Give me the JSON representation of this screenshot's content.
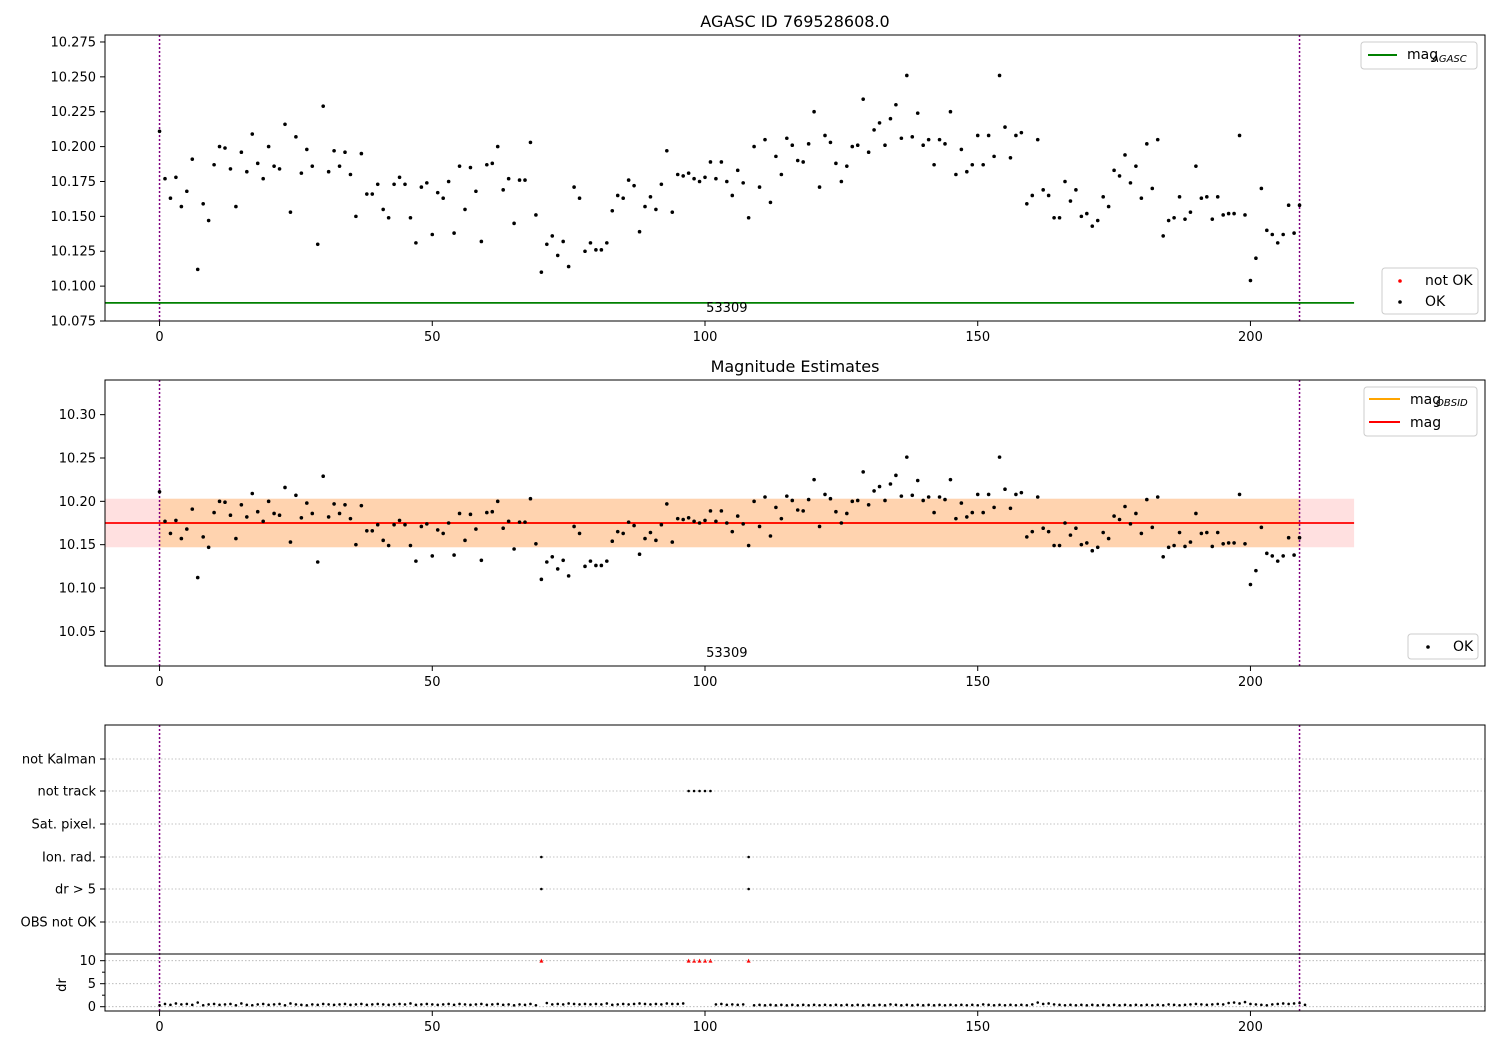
{
  "chart_data": [
    {
      "type": "scatter",
      "title": "AGASC ID 769528608.0",
      "xlim": [
        -10,
        243
      ],
      "ylim": [
        10.075,
        10.28
      ],
      "xticks": [
        0,
        50,
        100,
        150,
        200
      ],
      "yticks": [
        10.075,
        10.1,
        10.125,
        10.15,
        10.175,
        10.2,
        10.225,
        10.25,
        10.275
      ],
      "ytick_labels": [
        "10.075",
        "10.100",
        "10.125",
        "10.150",
        "10.175",
        "10.200",
        "10.225",
        "10.250",
        "10.275"
      ],
      "obsid_label": "53309",
      "obsid_label_x": 104,
      "obs_boundaries": [
        0,
        209
      ],
      "mag_agasc": 10.088,
      "mag_agasc_xrange": [
        -10,
        219
      ],
      "legend_top": {
        "placement": "top-right",
        "entries": [
          {
            "label": "mag",
            "subscript": "AGASC",
            "color": "#008000",
            "kind": "line"
          }
        ]
      },
      "legend_bottom": {
        "placement": "lower-right",
        "entries": [
          {
            "label": "not OK",
            "color": "#ff0000",
            "kind": "point"
          },
          {
            "label": "OK",
            "color": "#000000",
            "kind": "point"
          }
        ]
      },
      "series": [
        {
          "name": "OK",
          "color": "#000000",
          "x": [
            0,
            1,
            2,
            3,
            4,
            5,
            6,
            7,
            8,
            9,
            10,
            11,
            12,
            13,
            14,
            15,
            16,
            17,
            18,
            19,
            20,
            21,
            22,
            23,
            24,
            25,
            26,
            27,
            28,
            29,
            30,
            31,
            32,
            33,
            34,
            35,
            36,
            37,
            38,
            39,
            40,
            41,
            42,
            43,
            44,
            45,
            46,
            47,
            48,
            49,
            50,
            51,
            52,
            53,
            54,
            55,
            56,
            57,
            58,
            59,
            60,
            61,
            62,
            63,
            64,
            65,
            66,
            67,
            68,
            69,
            70,
            71,
            72,
            73,
            74,
            75,
            76,
            77,
            78,
            79,
            80,
            81,
            82,
            83,
            84,
            85,
            86,
            87,
            88,
            89,
            90,
            91,
            92,
            93,
            94,
            95,
            96,
            97,
            98,
            99,
            100,
            101,
            102,
            103,
            104,
            105,
            106,
            107,
            108,
            109,
            110,
            111,
            112,
            113,
            114,
            115,
            116,
            117,
            118,
            119,
            120,
            121,
            122,
            123,
            124,
            125,
            126,
            127,
            128,
            129,
            130,
            131,
            132,
            133,
            134,
            135,
            136,
            137,
            138,
            139,
            140,
            141,
            142,
            143,
            144,
            145,
            146,
            147,
            148,
            149,
            150,
            151,
            152,
            153,
            154,
            155,
            156,
            157,
            158,
            159,
            160,
            161,
            162,
            163,
            164,
            165,
            166,
            167,
            168,
            169,
            170,
            171,
            172,
            173,
            174,
            175,
            176,
            177,
            178,
            179,
            180,
            181,
            182,
            183,
            184,
            185,
            186,
            187,
            188,
            189,
            190,
            191,
            192,
            193,
            194,
            195,
            196,
            197,
            198,
            199,
            200,
            201,
            202,
            203,
            204,
            205,
            206,
            207,
            208,
            209
          ],
          "y": [
            10.211,
            10.177,
            10.163,
            10.178,
            10.157,
            10.168,
            10.191,
            10.112,
            10.159,
            10.147,
            10.187,
            10.2,
            10.199,
            10.184,
            10.157,
            10.196,
            10.182,
            10.209,
            10.188,
            10.177,
            10.2,
            10.186,
            10.184,
            10.216,
            10.153,
            10.207,
            10.181,
            10.198,
            10.186,
            10.13,
            10.229,
            10.182,
            10.197,
            10.186,
            10.196,
            10.18,
            10.15,
            10.195,
            10.166,
            10.166,
            10.173,
            10.155,
            10.149,
            10.173,
            10.178,
            10.173,
            10.149,
            10.131,
            10.171,
            10.174,
            10.137,
            10.167,
            10.163,
            10.175,
            10.138,
            10.186,
            10.155,
            10.185,
            10.168,
            10.132,
            10.187,
            10.188,
            10.2,
            10.169,
            10.177,
            10.145,
            10.176,
            10.176,
            10.203,
            10.151,
            10.11,
            10.13,
            10.136,
            10.122,
            10.132,
            10.114,
            10.171,
            10.163,
            10.125,
            10.131,
            10.126,
            10.126,
            10.131,
            10.154,
            10.165,
            10.163,
            10.176,
            10.172,
            10.139,
            10.157,
            10.164,
            10.155,
            10.173,
            10.197,
            10.153,
            10.18,
            10.179,
            10.181,
            10.177,
            10.175,
            10.178,
            10.189,
            10.177,
            10.189,
            10.175,
            10.165,
            10.183,
            10.174,
            10.149,
            10.2,
            10.171,
            10.205,
            10.16,
            10.193,
            10.18,
            10.206,
            10.201,
            10.19,
            10.189,
            10.202,
            10.225,
            10.171,
            10.208,
            10.203,
            10.188,
            10.175,
            10.186,
            10.2,
            10.201,
            10.234,
            10.196,
            10.212,
            10.217,
            10.201,
            10.22,
            10.23,
            10.206,
            10.251,
            10.207,
            10.224,
            10.201,
            10.205,
            10.187,
            10.205,
            10.202,
            10.225,
            10.18,
            10.198,
            10.182,
            10.187,
            10.208,
            10.187,
            10.208,
            10.193,
            10.251,
            10.214,
            10.192,
            10.208,
            10.21,
            10.159,
            10.165,
            10.205,
            10.169,
            10.165,
            10.149,
            10.149,
            10.175,
            10.161,
            10.169,
            10.15,
            10.152,
            10.143,
            10.147,
            10.164,
            10.157,
            10.183,
            10.179,
            10.194,
            10.174,
            10.186,
            10.163,
            10.202,
            10.17,
            10.205,
            10.136,
            10.147,
            10.149,
            10.164,
            10.148,
            10.153,
            10.186,
            10.163,
            10.164,
            10.148,
            10.164,
            10.151,
            10.152,
            10.152,
            10.208,
            10.151,
            10.104,
            10.12,
            10.17,
            10.14,
            10.137,
            10.131,
            10.137,
            10.158,
            10.138,
            10.158
          ]
        }
      ]
    },
    {
      "type": "scatter",
      "title": "Magnitude Estimates",
      "xlim": [
        -10,
        243
      ],
      "ylim": [
        10.01,
        10.34
      ],
      "xticks": [
        0,
        50,
        100,
        150,
        200
      ],
      "yticks": [
        10.05,
        10.1,
        10.15,
        10.2,
        10.25,
        10.3
      ],
      "ytick_labels": [
        "10.05",
        "10.10",
        "10.15",
        "10.20",
        "10.25",
        "10.30"
      ],
      "obsid_label": "53309",
      "obsid_label_x": 104,
      "obs_boundaries": [
        0,
        209
      ],
      "mag_obsid": {
        "value": 10.175,
        "band": [
          10.147,
          10.203
        ],
        "color": "#ffa500"
      },
      "mag": {
        "value": 10.175,
        "band": [
          10.147,
          10.203
        ],
        "color": "#ff0000"
      },
      "band_xrange": [
        -10,
        219
      ],
      "legend_top": {
        "placement": "top-right",
        "entries": [
          {
            "label": "mag",
            "subscript": "OBSID",
            "color": "#ffa500",
            "kind": "line"
          },
          {
            "label": "mag",
            "subscript": "",
            "color": "#ff0000",
            "kind": "line"
          }
        ]
      },
      "legend_bottom": {
        "placement": "lower-right",
        "entries": [
          {
            "label": "OK",
            "color": "#000000",
            "kind": "point"
          }
        ]
      },
      "series_ref": "same points as chart 1, OK series"
    },
    {
      "type": "scatter",
      "title": "",
      "xlim": [
        -10,
        243
      ],
      "xticks": [
        0,
        50,
        100,
        150,
        200
      ],
      "obs_boundaries": [
        0,
        209
      ],
      "flag_rows": [
        "not Kalman",
        "not track",
        "Sat. pixel.",
        "Ion. rad.",
        "dr > 5",
        "OBS not OK"
      ],
      "flags": {
        "not track": [
          97,
          98,
          99,
          100,
          101
        ],
        "Ion. rad.": [
          70,
          108
        ],
        "dr > 5": [
          70,
          108
        ]
      },
      "dr_ylim": [
        -0.5,
        10.8
      ],
      "dr_yticks": [
        0,
        5,
        10
      ],
      "dr_ylabel": "dr",
      "dr_clipped": {
        "x": [
          70,
          97,
          98,
          99,
          100,
          101,
          108
        ],
        "value": 10,
        "color": "#ff0000"
      },
      "dr_values": [
        0.3,
        0.6,
        0.4,
        0.7,
        0.5,
        0.6,
        0.4,
        0.9,
        0.3,
        0.5,
        0.6,
        0.4,
        0.5,
        0.6,
        0.3,
        0.7,
        0.4,
        0.3,
        0.5,
        0.6,
        0.4,
        0.5,
        0.6,
        0.3,
        0.7,
        0.5,
        0.4,
        0.3,
        0.5,
        0.4,
        0.6,
        0.5,
        0.4,
        0.5,
        0.6,
        0.4,
        0.5,
        0.6,
        0.4,
        0.5,
        0.6,
        0.5,
        0.4,
        0.5,
        0.6,
        0.5,
        0.7,
        0.4,
        0.5,
        0.6,
        0.5,
        0.4,
        0.5,
        0.6,
        0.4,
        0.6,
        0.5,
        0.4,
        0.5,
        0.6,
        0.4,
        0.5,
        0.6,
        0.4,
        0.5,
        0.3,
        0.5,
        0.4,
        0.6,
        0.3,
        10,
        0.8,
        0.5,
        0.6,
        0.5,
        0.7,
        0.6,
        0.5,
        0.6,
        0.5,
        0.6,
        0.5,
        0.7,
        0.4,
        0.5,
        0.6,
        0.5,
        0.6,
        0.7,
        0.6,
        0.5,
        0.6,
        0.5,
        0.7,
        0.6,
        0.6,
        0.7,
        10,
        10,
        10,
        10,
        10,
        0.5,
        0.6,
        0.4,
        0.5,
        0.4,
        0.5,
        10,
        0.3,
        0.4,
        0.3,
        0.4,
        0.3,
        0.4,
        0.3,
        0.4,
        0.3,
        0.4,
        0.3,
        0.4,
        0.3,
        0.4,
        0.3,
        0.4,
        0.3,
        0.4,
        0.3,
        0.4,
        0.3,
        0.4,
        0.3,
        0.4,
        0.3,
        0.5,
        0.4,
        0.3,
        0.4,
        0.3,
        0.4,
        0.3,
        0.4,
        0.3,
        0.4,
        0.3,
        0.4,
        0.3,
        0.4,
        0.3,
        0.4,
        0.3,
        0.5,
        0.4,
        0.3,
        0.4,
        0.3,
        0.4,
        0.3,
        0.4,
        0.3,
        0.5,
        0.9,
        0.6,
        0.7,
        0.5,
        0.4,
        0.3,
        0.4,
        0.3,
        0.4,
        0.3,
        0.4,
        0.3,
        0.4,
        0.3,
        0.4,
        0.3,
        0.4,
        0.3,
        0.4,
        0.3,
        0.4,
        0.3,
        0.4,
        0.3,
        0.5,
        0.4,
        0.3,
        0.4,
        0.5,
        0.6,
        0.5,
        0.4,
        0.5,
        0.6,
        0.5,
        0.8,
        0.9,
        0.7,
        1.0,
        0.6,
        0.5,
        0.4,
        0.3,
        0.5,
        0.6,
        0.7,
        0.6,
        0.7,
        0.8,
        0.4
      ]
    }
  ]
}
